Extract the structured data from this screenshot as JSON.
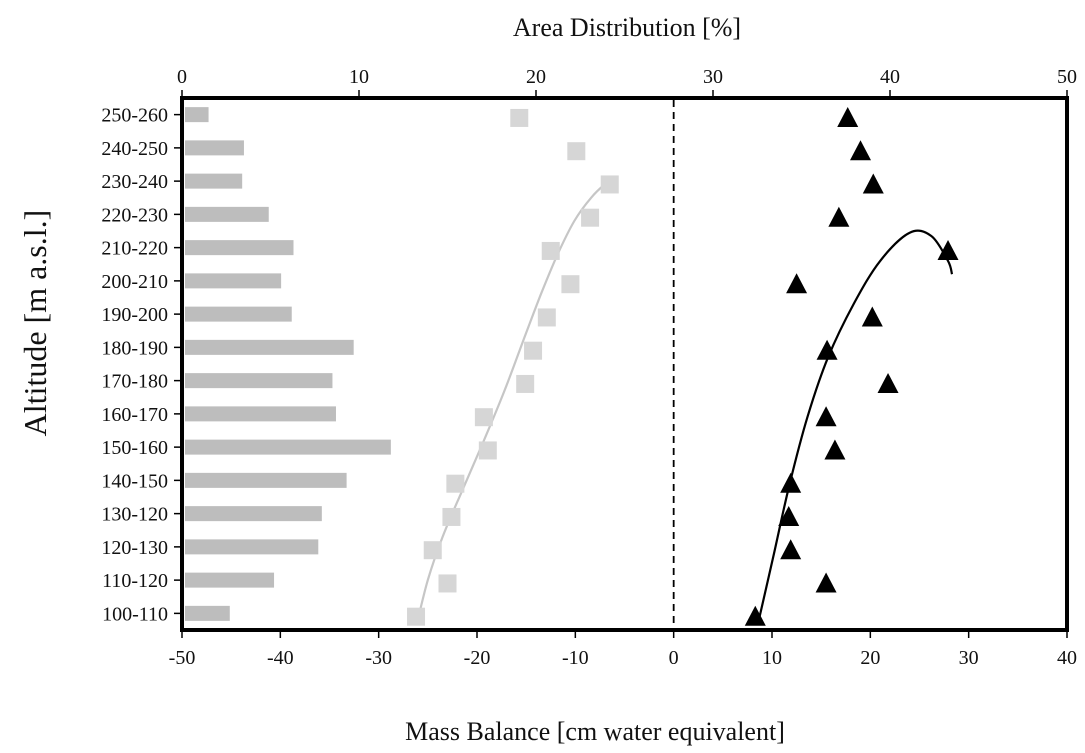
{
  "chart_data": {
    "type": "bar+scatter",
    "xlabel_top": "Area Distribution [%]",
    "xlabel_bottom": "Mass Balance [cm water equivalent]",
    "ylabel": "Altitude [m a.s.l.]",
    "top_axis": {
      "range": [
        0,
        50
      ],
      "ticks": [
        "0",
        "10",
        "20",
        "30",
        "40",
        "50"
      ]
    },
    "bottom_axis": {
      "range": [
        -50,
        40
      ],
      "ticks": [
        "-50",
        "-40",
        "-30",
        "-20",
        "-10",
        "0",
        "10",
        "20",
        "30",
        "40"
      ]
    },
    "categories": [
      "250-260",
      "240-250",
      "230-240",
      "220-230",
      "210-220",
      "200-210",
      "190-200",
      "180-190",
      "170-180",
      "160-170",
      "150-160",
      "140-150",
      "130-120",
      "120-130",
      "110-120",
      "100-110"
    ],
    "area_distribution": [
      1.5,
      3.5,
      3.4,
      4.9,
      6.3,
      5.6,
      6.2,
      9.7,
      8.5,
      8.7,
      11.8,
      9.3,
      7.9,
      7.7,
      5.2,
      2.7
    ],
    "gray_squares": [
      {
        "x": -15.7,
        "y": 15.4
      },
      {
        "x": -9.9,
        "y": 14.4
      },
      {
        "x": -6.5,
        "y": 13.4
      },
      {
        "x": -8.5,
        "y": 12.4
      },
      {
        "x": -12.5,
        "y": 11.4
      },
      {
        "x": -10.5,
        "y": 10.4
      },
      {
        "x": -12.9,
        "y": 9.4
      },
      {
        "x": -14.3,
        "y": 8.4
      },
      {
        "x": -15.1,
        "y": 7.4
      },
      {
        "x": -19.3,
        "y": 6.4
      },
      {
        "x": -18.9,
        "y": 5.4
      },
      {
        "x": -22.2,
        "y": 4.4
      },
      {
        "x": -22.6,
        "y": 3.4
      },
      {
        "x": -24.5,
        "y": 2.4
      },
      {
        "x": -23.0,
        "y": 1.4
      },
      {
        "x": -26.2,
        "y": 0.4
      }
    ],
    "black_triangles": [
      {
        "x": 17.7,
        "y": 15.4
      },
      {
        "x": 19.0,
        "y": 14.4
      },
      {
        "x": 20.3,
        "y": 13.4
      },
      {
        "x": 16.8,
        "y": 12.4
      },
      {
        "x": 27.9,
        "y": 11.4
      },
      {
        "x": 12.5,
        "y": 10.4
      },
      {
        "x": 20.2,
        "y": 9.4
      },
      {
        "x": 15.6,
        "y": 8.4
      },
      {
        "x": 21.8,
        "y": 7.4
      },
      {
        "x": 15.5,
        "y": 6.4
      },
      {
        "x": 16.4,
        "y": 5.4
      },
      {
        "x": 11.9,
        "y": 4.4
      },
      {
        "x": 11.7,
        "y": 3.4
      },
      {
        "x": 11.9,
        "y": 2.4
      },
      {
        "x": 15.5,
        "y": 1.4
      },
      {
        "x": 8.3,
        "y": 0.4
      }
    ],
    "gray_fit": [
      [
        -26.1,
        0.2
      ],
      [
        -25.0,
        1.5
      ],
      [
        -23.5,
        2.8
      ],
      [
        -21.5,
        4.2
      ],
      [
        -19.3,
        5.7
      ],
      [
        -17.2,
        7.2
      ],
      [
        -15.3,
        8.7
      ],
      [
        -13.5,
        10.1
      ],
      [
        -11.8,
        11.3
      ],
      [
        -10.1,
        12.3
      ],
      [
        -8.4,
        13.0
      ],
      [
        -7.0,
        13.4
      ],
      [
        -6.3,
        13.5
      ]
    ],
    "black_fit": [
      [
        8.7,
        0.35
      ],
      [
        10.2,
        2.3
      ],
      [
        11.8,
        4.4
      ],
      [
        13.6,
        6.4
      ],
      [
        15.7,
        8.2
      ],
      [
        18.3,
        9.8
      ],
      [
        21.0,
        11.1
      ],
      [
        24.0,
        11.95
      ],
      [
        26.2,
        11.85
      ],
      [
        27.9,
        11.1
      ],
      [
        28.3,
        10.7
      ]
    ],
    "zero_line": {
      "x": 0,
      "style": "dashed"
    },
    "colors": {
      "bars": "#bdbdbd",
      "squares": "#d6d6d6",
      "gray_line": "#c6c6c6",
      "triangles": "#000000",
      "black_line": "#000000",
      "frame": "#000000"
    }
  }
}
